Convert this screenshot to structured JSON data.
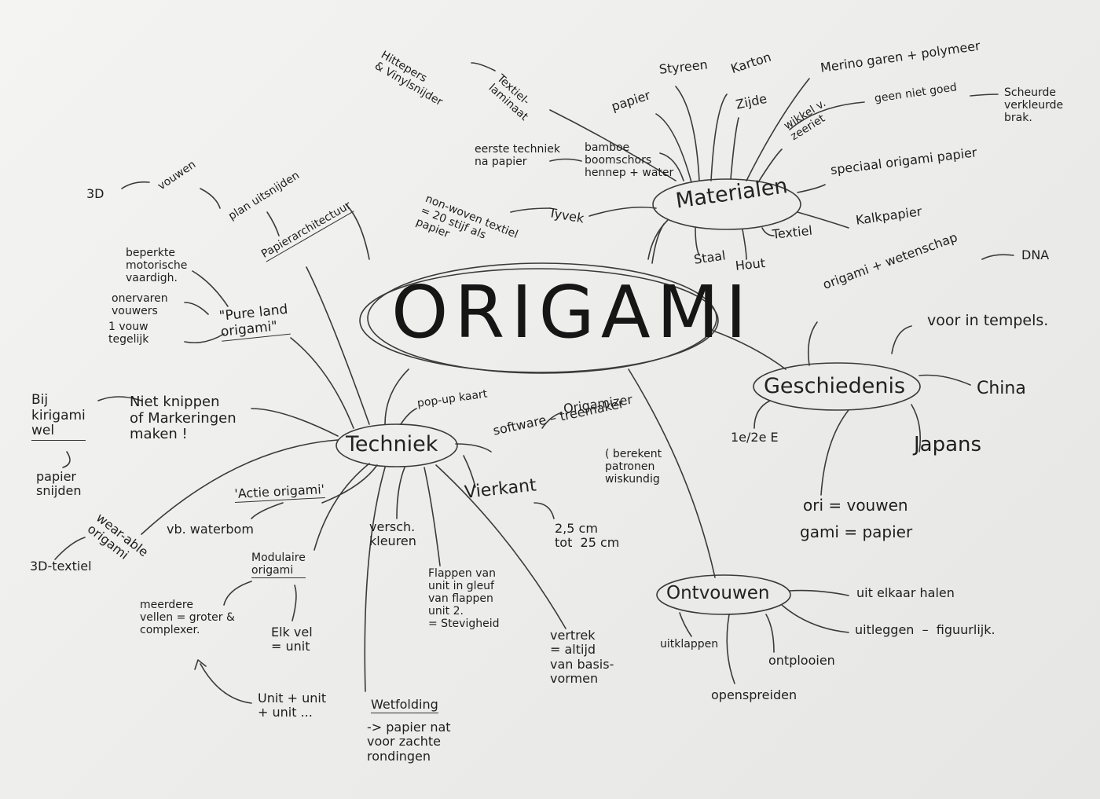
{
  "center": {
    "label": "ORIGAMI"
  },
  "branches": {
    "materialen": {
      "label": "Materialen",
      "items": {
        "styreen": "Styreen",
        "karton": "Karton",
        "papier": "papier",
        "zijde": "Zijde",
        "merino": "Merino garen + polymeer",
        "wikkel": "wikkel v.\nzeeriet",
        "geen_niet_goed": "geen niet goed",
        "scheurde": "Scheurde\nverkleurde\nbrak.",
        "speciaal": "speciaal origami papier",
        "kalkpapier": "Kalkpapier",
        "textiel": "Textiel",
        "hout": "Hout",
        "staal": "Staal",
        "tyvek": "Tyvek",
        "non_woven": "non-woven textiel\n= 20 stijf als\npapier",
        "bamboe": "bamboe\nboomschors\nhennep + water",
        "eerste_techniek": "eerste techniek\nna papier",
        "textiel_laminaat": "Textiel-\nlaminaat",
        "hittepers": "Hittepers\n& Vinylsnijder"
      }
    },
    "geschiedenis": {
      "label": "Geschiedenis",
      "items": {
        "origami_wetenschap": "origami + wetenschap",
        "dna": "DNA",
        "voor_in_tempels": "voor in tempels.",
        "china": "China",
        "eeuw": "1e/2e E",
        "japans": "Japans",
        "ori": "ori = vouwen",
        "gami": "gami = papier"
      }
    },
    "ontvouwen": {
      "label": "Ontvouwen",
      "items": {
        "uit_elkaar": "uit elkaar halen",
        "uitleggen": "uitleggen  –  figuurlijk.",
        "uitklappen": "uitklappen",
        "ontplooien": "ontplooien",
        "openspreiden": "openspreiden"
      }
    },
    "techniek": {
      "label": "Techniek",
      "items": {
        "pop_up": "pop-up kaart",
        "origamizer": "Origamizer",
        "software": "software – treemaker",
        "berekent": "( berekent\npatronen\nwiskundig",
        "vierkant": "Vierkant",
        "afmeting": "2,5 cm\ntot  25 cm",
        "versch_kleuren": "versch.\nkleuren",
        "flappen": "Flappen van\nunit in gleuf\nvan flappen\nunit 2.\n= Stevigheid",
        "vertrek": "vertrek\n= altijd\nvan basis-\nvormen",
        "wetfolding": "Wetfolding",
        "wetfolding_desc": "-> papier nat\nvoor zachte\nrondingen",
        "modulaire": "Modulaire\norigami",
        "meerdere": "meerdere\nvellen = groter &\ncomplexer.",
        "elk_vel": "Elk vel\n= unit",
        "unit_plus": "Unit + unit\n+ unit ...",
        "actie": "'Actie origami'",
        "waterbom": "vb. waterbom",
        "wearable": "wear-able\norigami",
        "textiel_3d": "3D-textiel",
        "niet_knippen": "Niet knippen\nof Markeringen\nmaken !",
        "kirigami": "Bij\nkirigami\nwel",
        "papier_snijden": "papier\nsnijden",
        "pure_land": "\"Pure land\norigami\"",
        "beperkte": "beperkte\nmotorische\nvaardigh.",
        "onervaren": "onervaren\nvouwers",
        "een_vouw": "1 vouw\ntegelijk",
        "papierarchitectuur": "Papierarchitectuur",
        "plan_uitsnijden": "plan uitsnijden",
        "vouwen": "vouwen",
        "drie_d": "3D"
      }
    }
  }
}
